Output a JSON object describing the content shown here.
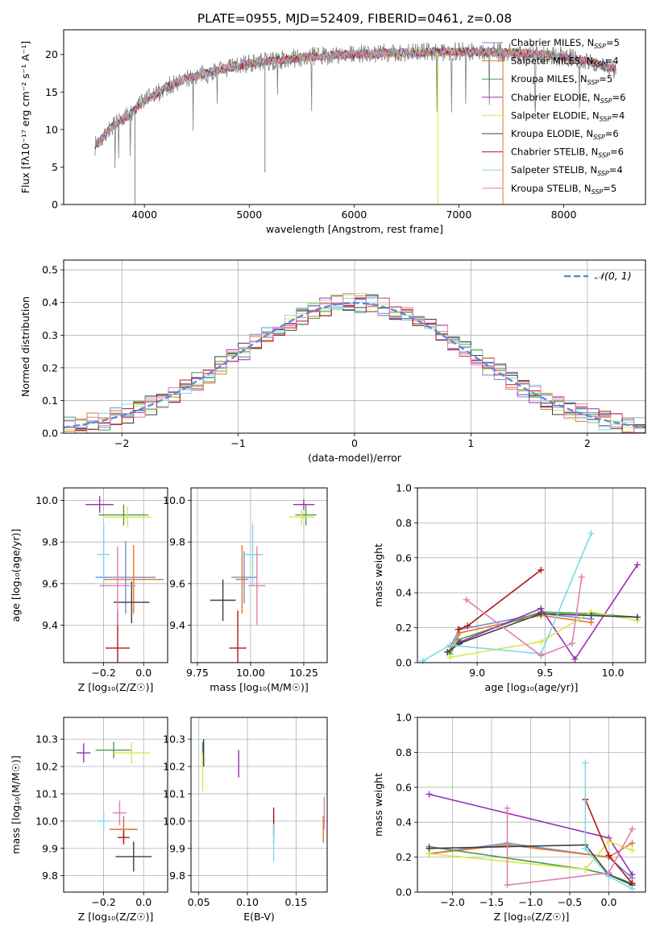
{
  "title": "PLATE=0955, MJD=52409, FIBERID=0461, z=0.08",
  "model_colors": [
    "#6f8fd6",
    "#e8762a",
    "#4d9a4d",
    "#9b2fb4",
    "#d8e84a",
    "#3f3f3f",
    "#b01818",
    "#7ed9e3",
    "#e07fb6"
  ],
  "chart_data": [
    {
      "id": "spectrum",
      "type": "line",
      "title": "PLATE=0955, MJD=52409, FIBERID=0461, z=0.08",
      "xlabel": "wavelength [Angstrom, rest frame]",
      "ylabel": "Flux [fλ10⁻¹⁷ erg cm⁻² s⁻¹ A⁻¹]",
      "xlim": [
        3230,
        8780
      ],
      "ylim": [
        0,
        23.3
      ],
      "xticks": [
        "4000",
        "5000",
        "6000",
        "7000",
        "8000"
      ],
      "yticks": [
        "0",
        "5",
        "10",
        "15",
        "20"
      ],
      "grid": false,
      "legend_position": "right",
      "continuum": {
        "x": [
          3530,
          3650,
          3800,
          3900,
          4000,
          4100,
          4200,
          4400,
          4600,
          4800,
          5000,
          5200,
          5500,
          5800,
          6000,
          6300,
          6600,
          7000,
          7300,
          7600,
          7900,
          8200,
          8500
        ],
        "y": [
          7.8,
          9.8,
          11.5,
          12.5,
          13.8,
          14.6,
          15.6,
          16.8,
          17.5,
          18.2,
          18.8,
          19.1,
          19.6,
          19.9,
          20.0,
          20.2,
          20.3,
          20.4,
          20.3,
          20.2,
          19.9,
          19.2,
          18.0
        ]
      },
      "series": [
        {
          "name": "Chabrier MILES, N_SSP=5",
          "label": "Chabrier MILES, N",
          "sub": "SSP",
          "n": "=5"
        },
        {
          "name": "Salpeter MILES, N_SSP=4",
          "label": "Salpeter MILES, N",
          "sub": "SSP",
          "n": "=4"
        },
        {
          "name": "Kroupa MILES, N_SSP=5",
          "label": "Kroupa MILES, N",
          "sub": "SSP",
          "n": "=5"
        },
        {
          "name": "Chabrier ELODIE, N_SSP=6",
          "label": "Chabrier ELODIE, N",
          "sub": "SSP",
          "n": "=6"
        },
        {
          "name": "Salpeter ELODIE, N_SSP=4",
          "label": "Salpeter ELODIE, N",
          "sub": "SSP",
          "n": "=4"
        },
        {
          "name": "Kroupa ELODIE, N_SSP=6",
          "label": "Kroupa ELODIE, N",
          "sub": "SSP",
          "n": "=6"
        },
        {
          "name": "Chabrier STELIB, N_SSP=6",
          "label": "Chabrier STELIB, N",
          "sub": "SSP",
          "n": "=6"
        },
        {
          "name": "Salpeter STELIB, N_SSP=4",
          "label": "Salpeter STELIB, N",
          "sub": "SSP",
          "n": "=4"
        },
        {
          "name": "Kroupa STELIB, N_SSP=5",
          "label": "Kroupa STELIB, N",
          "sub": "SSP",
          "n": "=5"
        }
      ]
    },
    {
      "id": "residuals",
      "type": "histogram",
      "xlabel": "(data-model)/error",
      "ylabel": "Normed distribution",
      "xlim": [
        -2.5,
        2.5
      ],
      "ylim": [
        0,
        0.53
      ],
      "xticks": [
        "−2",
        "−1",
        "0",
        "1",
        "2"
      ],
      "yticks": [
        "0.0",
        "0.1",
        "0.2",
        "0.3",
        "0.4",
        "0.5"
      ],
      "grid": true,
      "bin_width": 0.1,
      "legend": "𝒩(0, 1)",
      "legend_position": "top-right",
      "curve": "gaussian, mean 0, sigma 1"
    },
    {
      "id": "z-age",
      "type": "errorbar",
      "xlabel": "Z [log₁₀(Z/Z☉)]",
      "ylabel": "age  [log₁₀(age/yr)]",
      "xlim": [
        -0.4,
        0.12
      ],
      "ylim": [
        9.22,
        10.06
      ],
      "xticks": [
        "−0.2",
        "0.0"
      ],
      "yticks": [
        "9.4",
        "9.6",
        "9.8",
        "10.0"
      ],
      "grid": true,
      "points": [
        {
          "x": -0.09,
          "x_err": 0.3,
          "y": 9.63,
          "y_err": 0.35
        },
        {
          "x": -0.05,
          "x_err": 0.3,
          "y": 9.62,
          "y_err": 0.33
        },
        {
          "x": -0.1,
          "x_err": 0.25,
          "y": 9.93,
          "y_err": 0.1
        },
        {
          "x": -0.22,
          "x_err": 0.14,
          "y": 9.98,
          "y_err": 0.08
        },
        {
          "x": -0.08,
          "x_err": 0.24,
          "y": 9.92,
          "y_err": 0.1
        },
        {
          "x": -0.06,
          "x_err": 0.18,
          "y": 9.51,
          "y_err": 0.2
        },
        {
          "x": -0.13,
          "x_err": 0.12,
          "y": 9.29,
          "y_err": 0.36
        },
        {
          "x": -0.2,
          "x_err": 0.06,
          "y": 9.74,
          "y_err": 0.3
        },
        {
          "x": -0.13,
          "x_err": 0.18,
          "y": 9.59,
          "y_err": 0.38
        }
      ]
    },
    {
      "id": "mass-age",
      "type": "errorbar",
      "xlabel": "mass [log₁₀(M/M☉)]",
      "ylabel": "",
      "xlim": [
        9.72,
        10.36
      ],
      "ylim": [
        9.22,
        10.06
      ],
      "xticks": [
        "9.75",
        "10.00",
        "10.25"
      ],
      "yticks": [
        "9.4",
        "9.6",
        "9.8",
        "10.0"
      ],
      "grid": true,
      "points": [
        {
          "x": 9.97,
          "x_err": 0.12,
          "y": 9.63,
          "y_err": 0.25
        },
        {
          "x": 9.96,
          "x_err": 0.06,
          "y": 9.62,
          "y_err": 0.33
        },
        {
          "x": 10.26,
          "x_err": 0.1,
          "y": 9.93,
          "y_err": 0.1
        },
        {
          "x": 10.25,
          "x_err": 0.1,
          "y": 9.98,
          "y_err": 0.05
        },
        {
          "x": 10.24,
          "x_err": 0.12,
          "y": 9.92,
          "y_err": 0.08
        },
        {
          "x": 9.87,
          "x_err": 0.12,
          "y": 9.52,
          "y_err": 0.2
        },
        {
          "x": 9.94,
          "x_err": 0.08,
          "y": 9.29,
          "y_err": 0.36
        },
        {
          "x": 10.01,
          "x_err": 0.1,
          "y": 9.74,
          "y_err": 0.3
        },
        {
          "x": 10.03,
          "x_err": 0.08,
          "y": 9.59,
          "y_err": 0.38
        }
      ]
    },
    {
      "id": "age-weight",
      "type": "line",
      "xlabel": "age  [log₁₀(age/yr)]",
      "ylabel": "mass weight",
      "xlim": [
        8.56,
        10.24
      ],
      "ylim": [
        0,
        1
      ],
      "xticks": [
        "9.0",
        "9.5",
        "10.0"
      ],
      "yticks": [
        "0.0",
        "0.2",
        "0.4",
        "0.6",
        "0.8",
        "1.0"
      ],
      "grid": true,
      "series": [
        {
          "x": [
            8.8,
            8.87,
            9.47,
            9.84
          ],
          "y": [
            0.09,
            0.19,
            0.28,
            0.25
          ]
        },
        {
          "x": [
            8.8,
            8.87,
            9.47,
            9.84
          ],
          "y": [
            0.07,
            0.17,
            0.27,
            0.23
          ]
        },
        {
          "x": [
            8.8,
            8.86,
            9.47,
            9.84,
            10.18
          ],
          "y": [
            0.05,
            0.13,
            0.29,
            0.28,
            0.26
          ]
        },
        {
          "x": [
            8.88,
            9.47,
            9.72,
            10.18
          ],
          "y": [
            0.12,
            0.31,
            0.02,
            0.56
          ]
        },
        {
          "x": [
            8.8,
            9.47,
            9.84,
            10.18
          ],
          "y": [
            0.03,
            0.12,
            0.29,
            0.24
          ]
        },
        {
          "x": [
            8.78,
            8.87,
            9.47,
            9.84,
            10.18
          ],
          "y": [
            0.06,
            0.11,
            0.28,
            0.27,
            0.26
          ]
        },
        {
          "x": [
            8.86,
            8.93,
            9.47
          ],
          "y": [
            0.19,
            0.21,
            0.53
          ]
        },
        {
          "x": [
            8.6,
            8.8,
            9.47,
            9.84
          ],
          "y": [
            0.01,
            0.1,
            0.05,
            0.74
          ]
        },
        {
          "x": [
            8.92,
            9.47,
            9.7,
            9.77
          ],
          "y": [
            0.36,
            0.04,
            0.11,
            0.49
          ]
        }
      ]
    },
    {
      "id": "z-mass",
      "type": "errorbar",
      "xlabel": "Z [log₁₀(Z/Z☉)]",
      "ylabel": "mass [log₁₀(M/M☉)]",
      "xlim": [
        -0.4,
        0.12
      ],
      "ylim": [
        9.74,
        10.38
      ],
      "xticks": [
        "−0.2",
        "0.0"
      ],
      "yticks": [
        "9.8",
        "9.9",
        "10.0",
        "10.1",
        "10.2",
        "10.3"
      ],
      "grid": true,
      "points": [
        {
          "x": -0.1,
          "x_err": 0.14,
          "y": 9.97,
          "y_err": 0.1
        },
        {
          "x": -0.1,
          "x_err": 0.14,
          "y": 9.97,
          "y_err": 0.08
        },
        {
          "x": -0.15,
          "x_err": 0.18,
          "y": 10.26,
          "y_err": 0.06
        },
        {
          "x": -0.3,
          "x_err": 0.07,
          "y": 10.25,
          "y_err": 0.07
        },
        {
          "x": -0.06,
          "x_err": 0.18,
          "y": 10.25,
          "y_err": 0.08
        },
        {
          "x": -0.05,
          "x_err": 0.18,
          "y": 9.87,
          "y_err": 0.11
        },
        {
          "x": -0.1,
          "x_err": 0.06,
          "y": 9.94,
          "y_err": 0.05
        },
        {
          "x": -0.2,
          "x_err": 0.06,
          "y": 10.0,
          "y_err": 0.07
        },
        {
          "x": -0.12,
          "x_err": 0.07,
          "y": 10.03,
          "y_err": 0.09
        }
      ]
    },
    {
      "id": "ebv-mass",
      "type": "errorbar",
      "xlabel": "E(B-V)",
      "ylabel": "",
      "xlim": [
        0.042,
        0.182
      ],
      "ylim": [
        9.74,
        10.38
      ],
      "xticks": [
        "0.05",
        "0.10",
        "0.15"
      ],
      "yticks": [
        "9.8",
        "9.9",
        "10.0",
        "10.1",
        "10.2",
        "10.3"
      ],
      "grid": true,
      "points": [
        {
          "x": 0.127,
          "y": 9.97,
          "y_err": 0.1
        },
        {
          "x": 0.178,
          "y": 9.97,
          "y_err": 0.1
        },
        {
          "x": 0.054,
          "y": 10.25,
          "y_err": 0.08
        },
        {
          "x": 0.091,
          "y": 10.21,
          "y_err": 0.1
        },
        {
          "x": 0.054,
          "y": 10.18,
          "y_err": 0.14
        },
        {
          "x": 0.055,
          "y": 10.25,
          "y_err": 0.1
        },
        {
          "x": 0.127,
          "y": 10.0,
          "y_err": 0.1
        },
        {
          "x": 0.127,
          "y": 9.92,
          "y_err": 0.14
        },
        {
          "x": 0.179,
          "y": 10.03,
          "y_err": 0.12
        }
      ]
    },
    {
      "id": "z-weight",
      "type": "line",
      "xlabel": "Z [log₁₀(Z/Z☉)]",
      "ylabel": "mass weight",
      "xlim": [
        -2.45,
        0.47
      ],
      "ylim": [
        0,
        1
      ],
      "xticks": [
        "−2.0",
        "−1.5",
        "−1.0",
        "−0.5",
        "0.0"
      ],
      "yticks": [
        "0.0",
        "0.2",
        "0.4",
        "0.6",
        "0.8",
        "1.0"
      ],
      "grid": true,
      "series": [
        {
          "x": [
            -2.3,
            -1.3,
            0.0,
            0.3
          ],
          "y": [
            0.22,
            0.28,
            0.2,
            0.08
          ]
        },
        {
          "x": [
            -2.3,
            -1.3,
            0.0,
            0.3
          ],
          "y": [
            0.22,
            0.27,
            0.2,
            0.28
          ]
        },
        {
          "x": [
            -2.3,
            -0.3,
            0.0,
            0.3
          ],
          "y": [
            0.26,
            0.13,
            0.1,
            0.05
          ]
        },
        {
          "x": [
            -2.3,
            0.0,
            0.3
          ],
          "y": [
            0.56,
            0.31,
            0.1
          ]
        },
        {
          "x": [
            -2.3,
            -0.3,
            0.0,
            0.3
          ],
          "y": [
            0.22,
            0.13,
            0.29,
            0.24
          ]
        },
        {
          "x": [
            -2.3,
            -0.3,
            0.0,
            0.3
          ],
          "y": [
            0.25,
            0.27,
            0.1,
            0.04
          ]
        },
        {
          "x": [
            -0.3,
            0.0,
            0.3
          ],
          "y": [
            0.53,
            0.21,
            0.05
          ]
        },
        {
          "x": [
            -0.3,
            -0.3,
            0.0,
            0.3
          ],
          "y": [
            0.74,
            0.25,
            0.09,
            0.02
          ]
        },
        {
          "x": [
            -1.3,
            -1.3,
            0.0,
            0.3
          ],
          "y": [
            0.48,
            0.04,
            0.11,
            0.36
          ]
        }
      ]
    }
  ]
}
